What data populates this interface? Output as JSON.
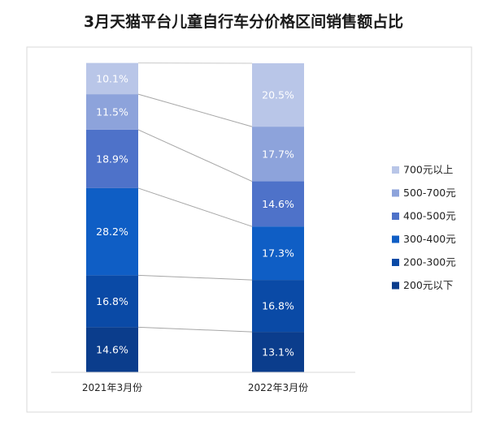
{
  "chart_data": {
    "type": "bar",
    "stacked": true,
    "percent": true,
    "title": "3月天猫平台儿童自行车分价格区间销售额占比",
    "categories": [
      "2021年3月份",
      "2022年3月份"
    ],
    "series": [
      {
        "name": "200元以下",
        "values": [
          14.6,
          13.1
        ],
        "labels": [
          "14.6%",
          "13.1%"
        ],
        "color": "#0b3d8c"
      },
      {
        "name": "200-300元",
        "values": [
          16.8,
          16.8
        ],
        "labels": [
          "16.8%",
          "16.8%"
        ],
        "color": "#0a4aa6"
      },
      {
        "name": "300-400元",
        "values": [
          28.2,
          17.3
        ],
        "labels": [
          "28.2%",
          "17.3%"
        ],
        "color": "#0f5ec5"
      },
      {
        "name": "400-500元",
        "values": [
          18.9,
          14.6
        ],
        "labels": [
          "18.9%",
          "14.6%"
        ],
        "color": "#4e72c9"
      },
      {
        "name": "500-700元",
        "values": [
          11.5,
          17.7
        ],
        "labels": [
          "11.5%",
          "17.7%"
        ],
        "color": "#8da3db"
      },
      {
        "name": "700元以上",
        "values": [
          10.1,
          20.5
        ],
        "labels": [
          "10.1%",
          "20.5%"
        ],
        "color": "#b9c6e8"
      }
    ],
    "ylim": [
      0,
      100
    ],
    "grid": false,
    "legend": "right"
  }
}
